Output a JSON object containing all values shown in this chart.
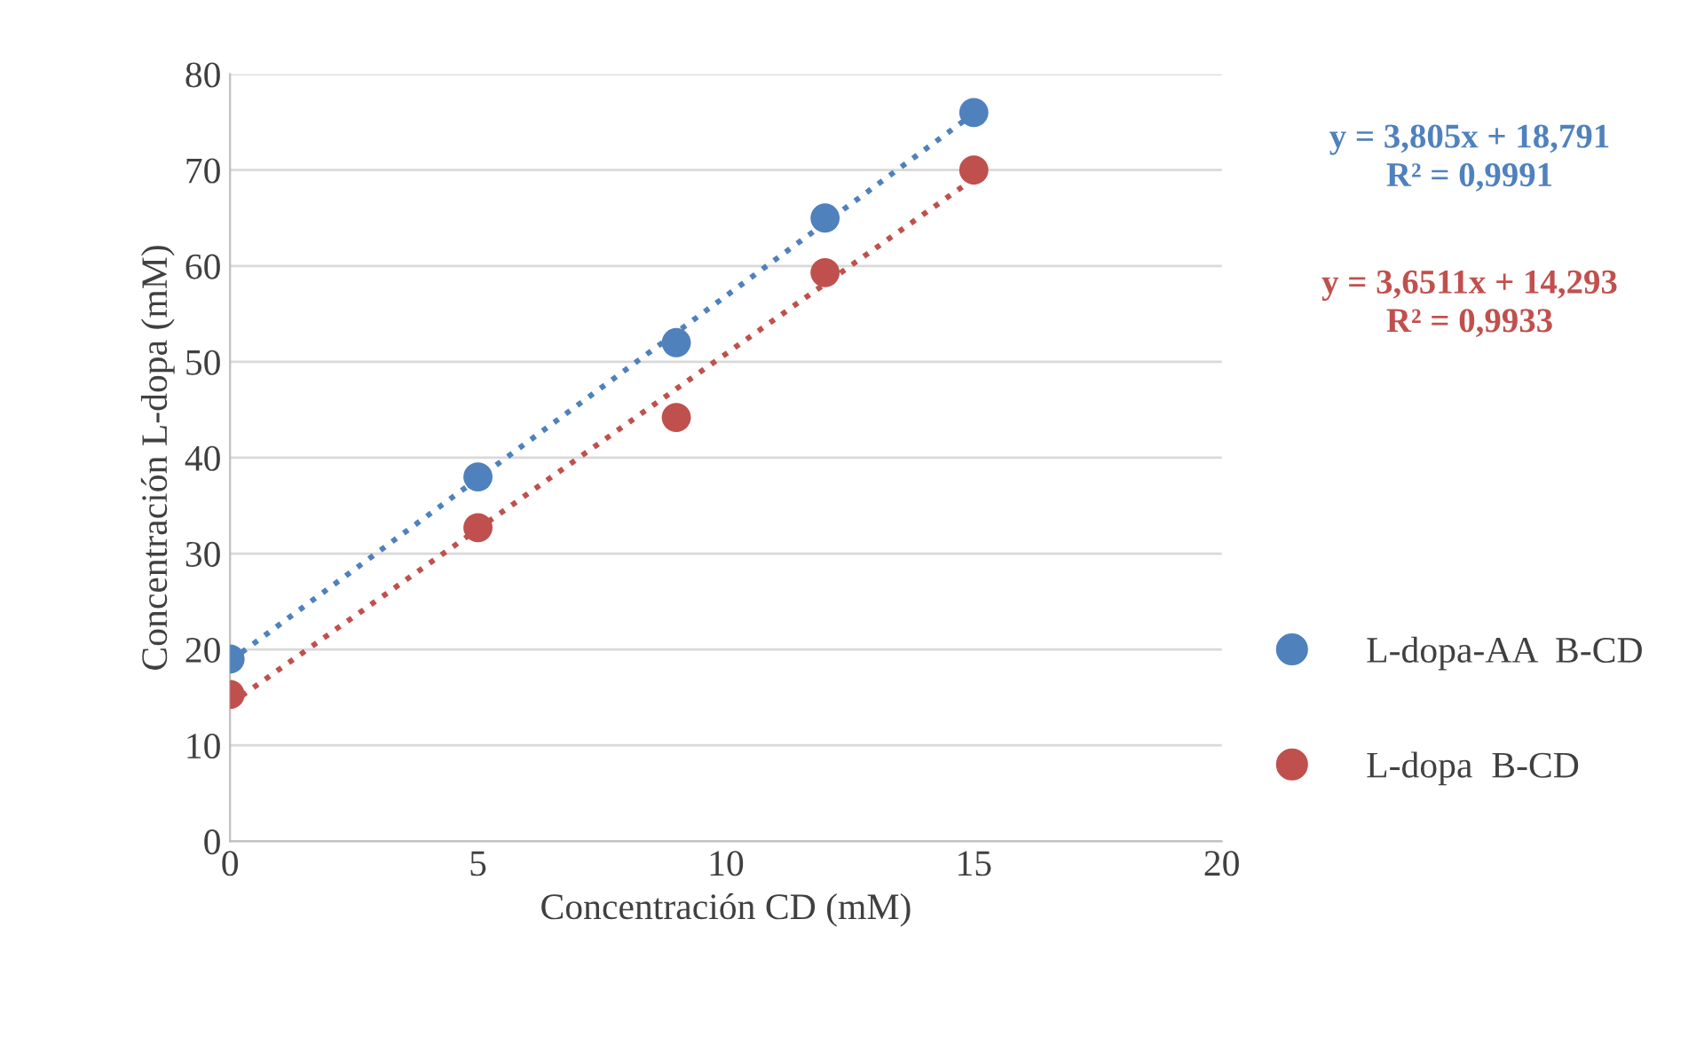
{
  "chart_data": {
    "type": "scatter",
    "xlabel": "Concentración CD (mM)",
    "ylabel": "Concentración L-dopa (mM)",
    "xlim": [
      0,
      20
    ],
    "xticks": [
      0,
      5,
      10,
      15,
      20
    ],
    "ylim": [
      0,
      80
    ],
    "yticks": [
      0,
      10,
      20,
      30,
      40,
      50,
      60,
      70,
      80
    ],
    "grid": "y",
    "legend": "right",
    "marker": "circle",
    "series": [
      {
        "name": "L-dopa-AA  B-CD",
        "color": "#4f81bd",
        "x": [
          0,
          5,
          9,
          12,
          15
        ],
        "values": [
          19,
          38,
          52,
          65,
          76
        ]
      },
      {
        "name": "L-dopa  B-CD",
        "color": "#c0504d",
        "x": [
          0,
          5,
          9,
          12,
          15
        ],
        "values": [
          15.3,
          32.7,
          44.2,
          59.3,
          70
        ]
      },
      {
        "type": "line",
        "line_style": "dotted",
        "color": "#4f81bd",
        "x": [
          0,
          15
        ],
        "values": [
          18.8,
          75.9
        ],
        "marker": "none"
      },
      {
        "type": "line",
        "line_style": "dotted",
        "color": "#c0504d",
        "x": [
          0,
          15
        ],
        "values": [
          14.3,
          69.1
        ],
        "marker": "none"
      }
    ],
    "annotations": [
      "y = 3,805x + 18,791\nR² = 0,9991",
      "y = 3,6511x + 14,293\nR² = 0,9933"
    ]
  }
}
